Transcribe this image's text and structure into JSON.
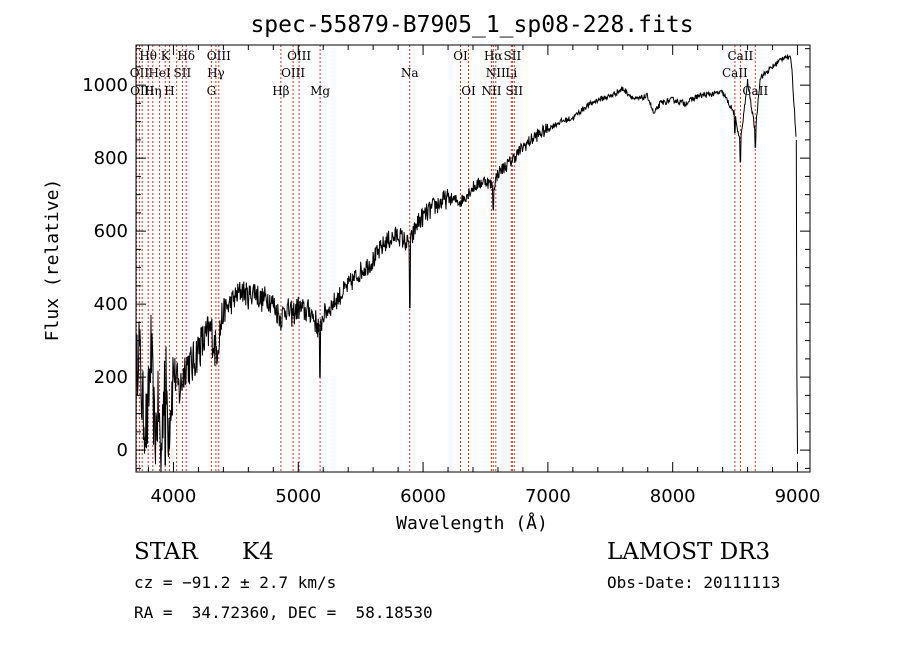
{
  "chart_data": {
    "type": "line",
    "title": "spec-55879-B7905_1_sp08-228.fits",
    "xlabel": "Wavelength (Å)",
    "ylabel": "Flux (relative)",
    "xlim": [
      3700,
      9100
    ],
    "ylim": [
      -60,
      1110
    ],
    "xticks": [
      4000,
      5000,
      6000,
      7000,
      8000,
      9000
    ],
    "yticks": [
      0,
      200,
      400,
      600,
      800,
      1000
    ],
    "grid": false,
    "series": [
      {
        "name": "Flux",
        "anchors": [
          [
            3700,
            150
          ],
          [
            3720,
            320
          ],
          [
            3750,
            120
          ],
          [
            3790,
            60
          ],
          [
            3820,
            280
          ],
          [
            3850,
            30
          ],
          [
            3880,
            120
          ],
          [
            3900,
            -40
          ],
          [
            3930,
            250
          ],
          [
            3960,
            60
          ],
          [
            4000,
            220
          ],
          [
            4050,
            160
          ],
          [
            4100,
            240
          ],
          [
            4150,
            230
          ],
          [
            4200,
            280
          ],
          [
            4250,
            300
          ],
          [
            4300,
            330
          ],
          [
            4340,
            270
          ],
          [
            4400,
            380
          ],
          [
            4450,
            400
          ],
          [
            4500,
            420
          ],
          [
            4550,
            440
          ],
          [
            4600,
            420
          ],
          [
            4650,
            440
          ],
          [
            4700,
            410
          ],
          [
            4750,
            420
          ],
          [
            4800,
            400
          ],
          [
            4860,
            360
          ],
          [
            4900,
            390
          ],
          [
            4950,
            370
          ],
          [
            5000,
            390
          ],
          [
            5050,
            380
          ],
          [
            5100,
            380
          ],
          [
            5170,
            330
          ],
          [
            5200,
            370
          ],
          [
            5300,
            410
          ],
          [
            5400,
            450
          ],
          [
            5500,
            490
          ],
          [
            5600,
            520
          ],
          [
            5700,
            570
          ],
          [
            5800,
            590
          ],
          [
            5890,
            560
          ],
          [
            5950,
            620
          ],
          [
            6000,
            640
          ],
          [
            6100,
            670
          ],
          [
            6200,
            690
          ],
          [
            6300,
            680
          ],
          [
            6400,
            720
          ],
          [
            6500,
            740
          ],
          [
            6563,
            720
          ],
          [
            6600,
            760
          ],
          [
            6700,
            790
          ],
          [
            6800,
            830
          ],
          [
            6900,
            860
          ],
          [
            7000,
            880
          ],
          [
            7100,
            900
          ],
          [
            7200,
            910
          ],
          [
            7300,
            940
          ],
          [
            7400,
            960
          ],
          [
            7500,
            970
          ],
          [
            7600,
            990
          ],
          [
            7700,
            960
          ],
          [
            7800,
            970
          ],
          [
            7850,
            920
          ],
          [
            7900,
            950
          ],
          [
            8000,
            960
          ],
          [
            8100,
            950
          ],
          [
            8200,
            970
          ],
          [
            8300,
            975
          ],
          [
            8400,
            980
          ],
          [
            8498,
            920
          ],
          [
            8542,
            840
          ],
          [
            8600,
            1010
          ],
          [
            8662,
            870
          ],
          [
            8700,
            1020
          ],
          [
            8800,
            1050
          ],
          [
            8900,
            1080
          ],
          [
            8950,
            1070
          ],
          [
            8990,
            850
          ]
        ],
        "absorption_lines": [
          {
            "x": 3934,
            "y": -40
          },
          {
            "x": 3968,
            "y": 40
          },
          {
            "x": 5175,
            "y": 200
          },
          {
            "x": 5893,
            "y": 390
          },
          {
            "x": 6563,
            "y": 660
          },
          {
            "x": 8498,
            "y": 870
          },
          {
            "x": 8542,
            "y": 790
          },
          {
            "x": 8662,
            "y": 830
          }
        ]
      }
    ],
    "line_marks": [
      {
        "x": 3704,
        "label": ""
      },
      {
        "x": 3727,
        "label": "OII"
      },
      {
        "x": 3750,
        "label": "OIII"
      },
      {
        "x": 3798,
        "label": ""
      },
      {
        "x": 3835,
        "label": "Hη"
      },
      {
        "x": 3889,
        "label": "HeI"
      },
      {
        "x": 3934,
        "label": "K"
      },
      {
        "x": 3968,
        "label": "H"
      },
      {
        "x": 4026,
        "label": ""
      },
      {
        "x": 4072,
        "label": "SII"
      },
      {
        "x": 4102,
        "label": "Hδ"
      },
      {
        "x": 4304,
        "label": "G"
      },
      {
        "x": 4340,
        "label": "Hγ"
      },
      {
        "x": 4363,
        "label": "OIII"
      },
      {
        "x": 4861,
        "label": "Hβ"
      },
      {
        "x": 4959,
        "label": "OIII"
      },
      {
        "x": 5007,
        "label": "OIII"
      },
      {
        "x": 5175,
        "label": "Mg"
      },
      {
        "x": 5893,
        "label": "Na"
      },
      {
        "x": 6300,
        "label": "OI"
      },
      {
        "x": 6364,
        "label": "OI"
      },
      {
        "x": 6548,
        "label": "NII"
      },
      {
        "x": 6563,
        "label": "Hα"
      },
      {
        "x": 6583,
        "label": "NII"
      },
      {
        "x": 6707,
        "label": "Li"
      },
      {
        "x": 6716,
        "label": "SII"
      },
      {
        "x": 6731,
        "label": "SII"
      },
      {
        "x": 8498,
        "label": "CaII"
      },
      {
        "x": 8542,
        "label": "CaII"
      },
      {
        "x": 8662,
        "label": "CaII"
      }
    ],
    "line_labels": [
      {
        "text": "Hθ",
        "x": 3798,
        "row": 1
      },
      {
        "text": "K",
        "x": 3934,
        "row": 1
      },
      {
        "text": "Hδ",
        "x": 4102,
        "row": 1
      },
      {
        "text": "OIII",
        "x": 4363,
        "row": 1
      },
      {
        "text": "OIII",
        "x": 5007,
        "row": 1
      },
      {
        "text": "OI",
        "x": 6300,
        "row": 1
      },
      {
        "text": "Hα",
        "x": 6563,
        "row": 1
      },
      {
        "text": "SII",
        "x": 6716,
        "row": 1
      },
      {
        "text": "CaII",
        "x": 8542,
        "row": 1
      },
      {
        "text": "OII",
        "x": 3727,
        "row": 2
      },
      {
        "text": "HeI",
        "x": 3889,
        "row": 2
      },
      {
        "text": "SII",
        "x": 4072,
        "row": 2
      },
      {
        "text": "Hγ",
        "x": 4340,
        "row": 2
      },
      {
        "text": "OIII",
        "x": 4959,
        "row": 2
      },
      {
        "text": "Na",
        "x": 5893,
        "row": 2
      },
      {
        "text": "NII",
        "x": 6583,
        "row": 2
      },
      {
        "text": "Li",
        "x": 6707,
        "row": 2
      },
      {
        "text": "CaII",
        "x": 8498,
        "row": 2
      },
      {
        "text": "OIII",
        "x": 3750,
        "row": 3
      },
      {
        "text": "Hη",
        "x": 3835,
        "row": 3
      },
      {
        "text": "H",
        "x": 3968,
        "row": 3
      },
      {
        "text": "G",
        "x": 4304,
        "row": 3
      },
      {
        "text": "Hβ",
        "x": 4861,
        "row": 3
      },
      {
        "text": "Mg",
        "x": 5175,
        "row": 3
      },
      {
        "text": "OI",
        "x": 6364,
        "row": 3
      },
      {
        "text": "NII",
        "x": 6548,
        "row": 3
      },
      {
        "text": "SII",
        "x": 6731,
        "row": 3
      },
      {
        "text": "CaII",
        "x": 8662,
        "row": 3
      }
    ]
  },
  "info": {
    "class_label": "STAR",
    "subclass": "K4",
    "survey": "LAMOST DR3",
    "cz": "cz = −91.2 ± 2.7 km/s",
    "obs_date": "Obs-Date: 20111113",
    "coords": "RA =  34.72360, DEC =  58.18530"
  },
  "colors": {
    "foreground": "#000000",
    "line_marker": "#c0392b",
    "background": "#ffffff"
  }
}
